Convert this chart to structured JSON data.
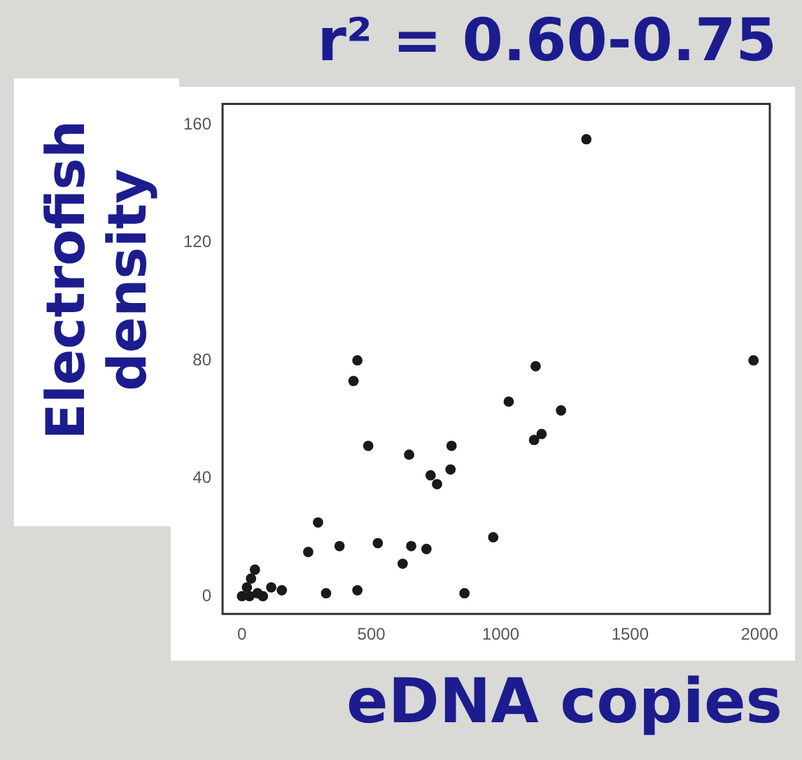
{
  "chart_data": {
    "type": "scatter",
    "title": "r² = 0.60-0.75",
    "xlabel": "eDNA copies",
    "ylabel": "Electrofish density",
    "series": [
      {
        "color": "#1a1a1a",
        "x": [
          446,
          431,
          1977,
          1135,
          1031,
          1233,
          1129,
          1158,
          488,
          646,
          810,
          806,
          729,
          754,
          294,
          256,
          377,
          525,
          654,
          713,
          621,
          971,
          325,
          446,
          860,
          0,
          19,
          35,
          50,
          29,
          81,
          113,
          154,
          60,
          1331
        ],
        "values": [
          80,
          73,
          80,
          78,
          66,
          63,
          53,
          55,
          51,
          48,
          51,
          43,
          41,
          38,
          25,
          15,
          17,
          18,
          17,
          16,
          11,
          20,
          1,
          2,
          1,
          0,
          3,
          6,
          9,
          0,
          0,
          3,
          2,
          1,
          155
        ]
      }
    ],
    "xlim": [
      -75,
      2040
    ],
    "ylim": [
      -6,
      167
    ],
    "xticks": [
      0,
      500,
      1000,
      1500,
      2000
    ],
    "yticks": [
      0,
      40,
      80,
      120,
      160
    ],
    "grid": false,
    "legend": false,
    "marker": "circle"
  }
}
